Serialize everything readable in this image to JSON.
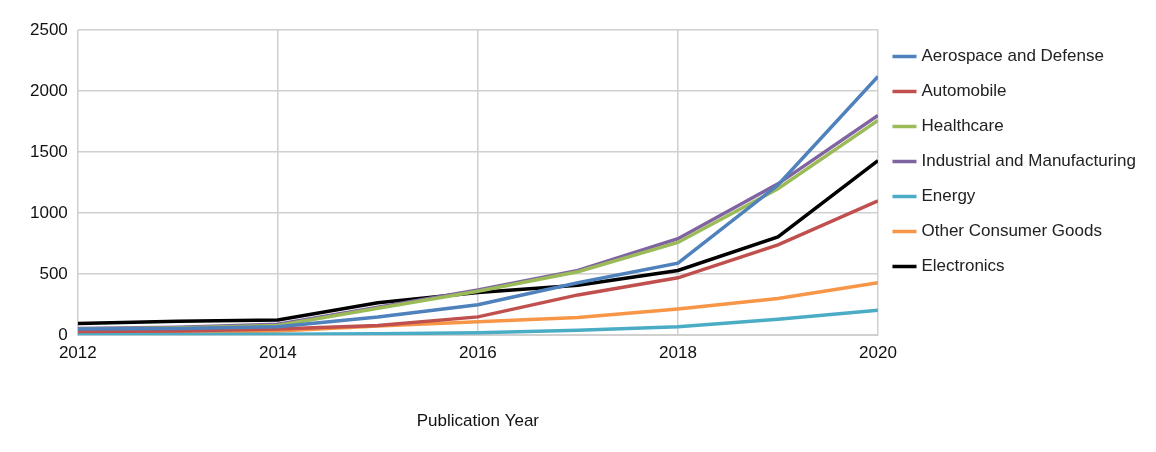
{
  "chart_data": {
    "type": "line",
    "x_label": "Publication Year",
    "x": [
      2012,
      2013,
      2014,
      2015,
      2016,
      2017,
      2018,
      2019,
      2020
    ],
    "series": [
      {
        "name": "Aerospace and Defense",
        "color": "#4f81bd",
        "values": [
          50,
          55,
          70,
          150,
          250,
          430,
          590,
          1230,
          2120
        ]
      },
      {
        "name": "Automobile",
        "color": "#c0504d",
        "values": [
          30,
          35,
          50,
          80,
          150,
          330,
          470,
          740,
          1100
        ]
      },
      {
        "name": "Healthcare",
        "color": "#9bbb59",
        "values": [
          50,
          60,
          80,
          220,
          360,
          520,
          760,
          1200,
          1760
        ]
      },
      {
        "name": "Industrial and Manufacturing",
        "color": "#8064a2",
        "values": [
          55,
          65,
          90,
          230,
          370,
          530,
          790,
          1240,
          1800
        ]
      },
      {
        "name": "Energy",
        "color": "#4bacc6",
        "values": [
          5,
          5,
          8,
          12,
          20,
          40,
          70,
          130,
          205
        ]
      },
      {
        "name": "Other Consumer Goods",
        "color": "#f79646",
        "values": [
          20,
          25,
          35,
          75,
          110,
          145,
          215,
          300,
          430
        ]
      },
      {
        "name": "Electronics",
        "color": "#000000",
        "values": [
          95,
          115,
          125,
          265,
          350,
          410,
          530,
          805,
          1430
        ]
      }
    ],
    "xlim": [
      2012,
      2020
    ],
    "xticks": [
      2012,
      2014,
      2016,
      2018,
      2020
    ],
    "ylim": [
      0,
      2500
    ],
    "yticks": [
      0,
      500,
      1000,
      1500,
      2000,
      2500
    ],
    "grid": true,
    "legend": "right"
  }
}
